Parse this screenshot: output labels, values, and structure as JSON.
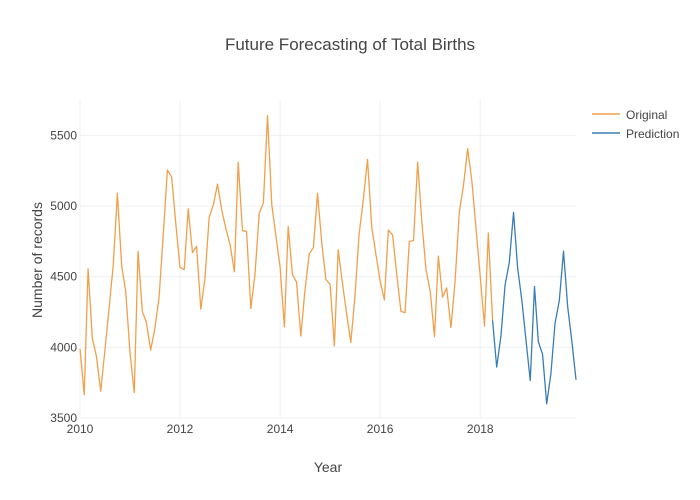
{
  "chart_data": {
    "type": "line",
    "title": "Future Forecasting of Total Births",
    "xlabel": "Year",
    "ylabel": "Number of records",
    "xlim": [
      "2010-01-01",
      "2019-12-01"
    ],
    "ylim": [
      3500,
      5750
    ],
    "x_ticks": [
      {
        "value": "2010-01-01",
        "label": "2010"
      },
      {
        "value": "2012-01-01",
        "label": "2012"
      },
      {
        "value": "2014-01-01",
        "label": "2014"
      },
      {
        "value": "2016-01-01",
        "label": "2016"
      },
      {
        "value": "2018-01-01",
        "label": "2018"
      }
    ],
    "y_ticks": [
      {
        "value": 3500,
        "label": "3500"
      },
      {
        "value": 4000,
        "label": "4000"
      },
      {
        "value": 4500,
        "label": "4500"
      },
      {
        "value": 5000,
        "label": "5000"
      },
      {
        "value": 5500,
        "label": "5500"
      }
    ],
    "grid": true,
    "legend_position": "top-right",
    "series": [
      {
        "name": "Original",
        "color": "#f0a04a",
        "points": [
          {
            "x": "2010-01-01",
            "y": 3990
          },
          {
            "x": "2010-02-01",
            "y": 3665
          },
          {
            "x": "2010-03-01",
            "y": 4555
          },
          {
            "x": "2010-04-01",
            "y": 4065
          },
          {
            "x": "2010-05-01",
            "y": 3935
          },
          {
            "x": "2010-06-01",
            "y": 3690
          },
          {
            "x": "2010-07-01",
            "y": 3970
          },
          {
            "x": "2010-08-01",
            "y": 4275
          },
          {
            "x": "2010-09-01",
            "y": 4585
          },
          {
            "x": "2010-10-01",
            "y": 5090
          },
          {
            "x": "2010-11-01",
            "y": 4580
          },
          {
            "x": "2010-12-01",
            "y": 4395
          },
          {
            "x": "2011-01-01",
            "y": 3960
          },
          {
            "x": "2011-02-01",
            "y": 3680
          },
          {
            "x": "2011-03-01",
            "y": 4680
          },
          {
            "x": "2011-04-01",
            "y": 4255
          },
          {
            "x": "2011-05-01",
            "y": 4175
          },
          {
            "x": "2011-06-01",
            "y": 3980
          },
          {
            "x": "2011-07-01",
            "y": 4130
          },
          {
            "x": "2011-08-01",
            "y": 4350
          },
          {
            "x": "2011-09-01",
            "y": 4800
          },
          {
            "x": "2011-10-01",
            "y": 5255
          },
          {
            "x": "2011-11-01",
            "y": 5205
          },
          {
            "x": "2011-12-01",
            "y": 4880
          },
          {
            "x": "2012-01-01",
            "y": 4565
          },
          {
            "x": "2012-02-01",
            "y": 4550
          },
          {
            "x": "2012-03-01",
            "y": 4980
          },
          {
            "x": "2012-04-01",
            "y": 4670
          },
          {
            "x": "2012-05-01",
            "y": 4715
          },
          {
            "x": "2012-06-01",
            "y": 4270
          },
          {
            "x": "2012-07-01",
            "y": 4485
          },
          {
            "x": "2012-08-01",
            "y": 4920
          },
          {
            "x": "2012-09-01",
            "y": 5010
          },
          {
            "x": "2012-10-01",
            "y": 5155
          },
          {
            "x": "2012-11-01",
            "y": 4970
          },
          {
            "x": "2012-12-01",
            "y": 4840
          },
          {
            "x": "2013-01-01",
            "y": 4725
          },
          {
            "x": "2013-02-01",
            "y": 4535
          },
          {
            "x": "2013-03-01",
            "y": 5310
          },
          {
            "x": "2013-04-01",
            "y": 4825
          },
          {
            "x": "2013-05-01",
            "y": 4820
          },
          {
            "x": "2013-06-01",
            "y": 4275
          },
          {
            "x": "2013-07-01",
            "y": 4510
          },
          {
            "x": "2013-08-01",
            "y": 4945
          },
          {
            "x": "2013-09-01",
            "y": 5025
          },
          {
            "x": "2013-10-01",
            "y": 5640
          },
          {
            "x": "2013-11-01",
            "y": 5010
          },
          {
            "x": "2013-12-01",
            "y": 4790
          },
          {
            "x": "2014-01-01",
            "y": 4565
          },
          {
            "x": "2014-02-01",
            "y": 4145
          },
          {
            "x": "2014-03-01",
            "y": 4855
          },
          {
            "x": "2014-04-01",
            "y": 4515
          },
          {
            "x": "2014-05-01",
            "y": 4460
          },
          {
            "x": "2014-06-01",
            "y": 4080
          },
          {
            "x": "2014-07-01",
            "y": 4400
          },
          {
            "x": "2014-08-01",
            "y": 4660
          },
          {
            "x": "2014-09-01",
            "y": 4705
          },
          {
            "x": "2014-10-01",
            "y": 5090
          },
          {
            "x": "2014-11-01",
            "y": 4740
          },
          {
            "x": "2014-12-01",
            "y": 4480
          },
          {
            "x": "2015-01-01",
            "y": 4445
          },
          {
            "x": "2015-02-01",
            "y": 4010
          },
          {
            "x": "2015-03-01",
            "y": 4690
          },
          {
            "x": "2015-04-01",
            "y": 4455
          },
          {
            "x": "2015-05-01",
            "y": 4240
          },
          {
            "x": "2015-06-01",
            "y": 4035
          },
          {
            "x": "2015-07-01",
            "y": 4355
          },
          {
            "x": "2015-08-01",
            "y": 4805
          },
          {
            "x": "2015-09-01",
            "y": 5050
          },
          {
            "x": "2015-10-01",
            "y": 5330
          },
          {
            "x": "2015-11-01",
            "y": 4850
          },
          {
            "x": "2015-12-01",
            "y": 4660
          },
          {
            "x": "2016-01-01",
            "y": 4470
          },
          {
            "x": "2016-02-01",
            "y": 4335
          },
          {
            "x": "2016-03-01",
            "y": 4830
          },
          {
            "x": "2016-04-01",
            "y": 4795
          },
          {
            "x": "2016-05-01",
            "y": 4520
          },
          {
            "x": "2016-06-01",
            "y": 4255
          },
          {
            "x": "2016-07-01",
            "y": 4245
          },
          {
            "x": "2016-08-01",
            "y": 4750
          },
          {
            "x": "2016-09-01",
            "y": 4755
          },
          {
            "x": "2016-10-01",
            "y": 5310
          },
          {
            "x": "2016-11-01",
            "y": 4880
          },
          {
            "x": "2016-12-01",
            "y": 4550
          },
          {
            "x": "2017-01-01",
            "y": 4395
          },
          {
            "x": "2017-02-01",
            "y": 4075
          },
          {
            "x": "2017-03-01",
            "y": 4645
          },
          {
            "x": "2017-04-01",
            "y": 4355
          },
          {
            "x": "2017-05-01",
            "y": 4420
          },
          {
            "x": "2017-06-01",
            "y": 4140
          },
          {
            "x": "2017-07-01",
            "y": 4465
          },
          {
            "x": "2017-08-01",
            "y": 4955
          },
          {
            "x": "2017-09-01",
            "y": 5150
          },
          {
            "x": "2017-10-01",
            "y": 5405
          },
          {
            "x": "2017-11-01",
            "y": 5175
          },
          {
            "x": "2017-12-01",
            "y": 4840
          },
          {
            "x": "2018-01-01",
            "y": 4500
          },
          {
            "x": "2018-02-01",
            "y": 4150
          },
          {
            "x": "2018-03-01",
            "y": 4810
          },
          {
            "x": "2018-04-01",
            "y": 4190
          }
        ]
      },
      {
        "name": "Prediction",
        "color": "#3a7db4",
        "points": [
          {
            "x": "2018-04-01",
            "y": 4190
          },
          {
            "x": "2018-05-01",
            "y": 3860
          },
          {
            "x": "2018-06-01",
            "y": 4080
          },
          {
            "x": "2018-07-01",
            "y": 4440
          },
          {
            "x": "2018-08-01",
            "y": 4600
          },
          {
            "x": "2018-09-01",
            "y": 4955
          },
          {
            "x": "2018-10-01",
            "y": 4560
          },
          {
            "x": "2018-11-01",
            "y": 4330
          },
          {
            "x": "2018-12-01",
            "y": 4050
          },
          {
            "x": "2019-01-01",
            "y": 3765
          },
          {
            "x": "2019-02-01",
            "y": 4430
          },
          {
            "x": "2019-03-01",
            "y": 4040
          },
          {
            "x": "2019-04-01",
            "y": 3950
          },
          {
            "x": "2019-05-01",
            "y": 3600
          },
          {
            "x": "2019-06-01",
            "y": 3815
          },
          {
            "x": "2019-07-01",
            "y": 4170
          },
          {
            "x": "2019-08-01",
            "y": 4330
          },
          {
            "x": "2019-09-01",
            "y": 4680
          },
          {
            "x": "2019-10-01",
            "y": 4290
          },
          {
            "x": "2019-11-01",
            "y": 4040
          },
          {
            "x": "2019-12-01",
            "y": 3770
          }
        ]
      }
    ]
  },
  "colors": {
    "background": "#ffffff",
    "grid": "#eef0f4",
    "text": "#444444",
    "title": "#444444"
  }
}
